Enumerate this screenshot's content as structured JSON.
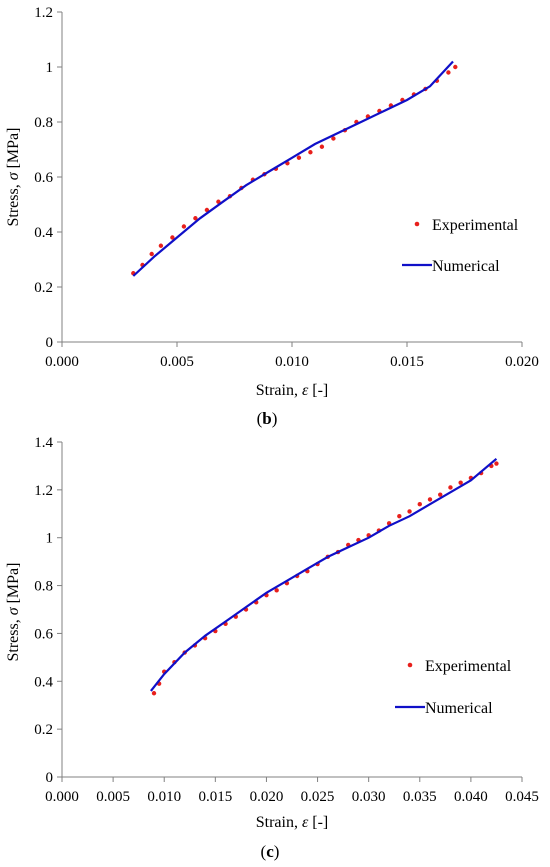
{
  "colors": {
    "experimental": "#e8201c",
    "numerical": "#1010c8",
    "axis": "#808080"
  },
  "chart_data": [
    {
      "type": "line",
      "panel_label_prefix": "(",
      "panel_label_letter": "b",
      "panel_label_suffix": ")",
      "xlabel_text": "Strain, ",
      "xlabel_symbol": "ε",
      "xlabel_unit": " [-]",
      "ylabel_text": "Stress, ",
      "ylabel_symbol": "σ",
      "ylabel_unit": " [MPa]",
      "xlim": [
        0,
        0.02
      ],
      "ylim": [
        0,
        1.2
      ],
      "xticks": [
        "0.000",
        "0.005",
        "0.010",
        "0.015",
        "0.020"
      ],
      "yticks": [
        "0",
        "0.2",
        "0.4",
        "0.6",
        "0.8",
        "1",
        "1.2"
      ],
      "legend": {
        "placement": "center-right",
        "experimental": "Experimental",
        "numerical": "Numerical"
      },
      "series": [
        {
          "name": "Experimental",
          "style": "dots",
          "x": [
            0.0031,
            0.0035,
            0.0039,
            0.0043,
            0.0048,
            0.0053,
            0.0058,
            0.0063,
            0.0068,
            0.0073,
            0.0078,
            0.0083,
            0.0088,
            0.0093,
            0.0098,
            0.0103,
            0.0108,
            0.0113,
            0.0118,
            0.0123,
            0.0128,
            0.0133,
            0.0138,
            0.0143,
            0.0148,
            0.0153,
            0.0158,
            0.0163,
            0.0168,
            0.0171
          ],
          "y": [
            0.25,
            0.28,
            0.32,
            0.35,
            0.38,
            0.42,
            0.45,
            0.48,
            0.51,
            0.53,
            0.56,
            0.59,
            0.61,
            0.63,
            0.65,
            0.67,
            0.69,
            0.71,
            0.74,
            0.77,
            0.8,
            0.82,
            0.84,
            0.86,
            0.88,
            0.9,
            0.92,
            0.95,
            0.98,
            1.0
          ]
        },
        {
          "name": "Numerical",
          "style": "line",
          "x": [
            0.0031,
            0.004,
            0.005,
            0.006,
            0.007,
            0.008,
            0.009,
            0.01,
            0.011,
            0.012,
            0.013,
            0.014,
            0.015,
            0.016,
            0.017
          ],
          "y": [
            0.24,
            0.31,
            0.38,
            0.45,
            0.51,
            0.57,
            0.62,
            0.67,
            0.72,
            0.76,
            0.8,
            0.84,
            0.88,
            0.93,
            1.02
          ]
        }
      ]
    },
    {
      "type": "line",
      "panel_label_prefix": "(",
      "panel_label_letter": "c",
      "panel_label_suffix": ")",
      "xlabel_text": "Strain, ",
      "xlabel_symbol": "ε",
      "xlabel_unit": " [-]",
      "ylabel_text": "Stress, ",
      "ylabel_symbol": "σ",
      "ylabel_unit": " [MPa]",
      "xlim": [
        0,
        0.045
      ],
      "ylim": [
        0,
        1.4
      ],
      "xticks": [
        "0.000",
        "0.005",
        "0.010",
        "0.015",
        "0.020",
        "0.025",
        "0.030",
        "0.035",
        "0.040",
        "0.045"
      ],
      "yticks": [
        "0",
        "0.2",
        "0.4",
        "0.6",
        "0.8",
        "1",
        "1.2",
        "1.4"
      ],
      "legend": {
        "placement": "center-right",
        "experimental": "Experimental",
        "numerical": "Numerical"
      },
      "series": [
        {
          "name": "Experimental",
          "style": "dots",
          "x": [
            0.009,
            0.0095,
            0.01,
            0.011,
            0.012,
            0.013,
            0.014,
            0.015,
            0.016,
            0.017,
            0.018,
            0.019,
            0.02,
            0.021,
            0.022,
            0.023,
            0.024,
            0.025,
            0.026,
            0.027,
            0.028,
            0.029,
            0.03,
            0.031,
            0.032,
            0.033,
            0.034,
            0.035,
            0.036,
            0.037,
            0.038,
            0.039,
            0.04,
            0.041,
            0.042,
            0.0425
          ],
          "y": [
            0.35,
            0.39,
            0.44,
            0.48,
            0.52,
            0.55,
            0.58,
            0.61,
            0.64,
            0.67,
            0.7,
            0.73,
            0.76,
            0.78,
            0.81,
            0.84,
            0.86,
            0.89,
            0.92,
            0.94,
            0.97,
            0.99,
            1.01,
            1.03,
            1.06,
            1.09,
            1.11,
            1.14,
            1.16,
            1.18,
            1.21,
            1.23,
            1.25,
            1.27,
            1.3,
            1.31
          ]
        },
        {
          "name": "Numerical",
          "style": "line",
          "x": [
            0.0087,
            0.01,
            0.012,
            0.014,
            0.016,
            0.018,
            0.02,
            0.022,
            0.024,
            0.026,
            0.028,
            0.03,
            0.032,
            0.034,
            0.036,
            0.038,
            0.04,
            0.0425
          ],
          "y": [
            0.36,
            0.43,
            0.52,
            0.59,
            0.65,
            0.71,
            0.77,
            0.82,
            0.87,
            0.92,
            0.96,
            1.0,
            1.05,
            1.09,
            1.14,
            1.19,
            1.24,
            1.33
          ]
        }
      ]
    }
  ]
}
